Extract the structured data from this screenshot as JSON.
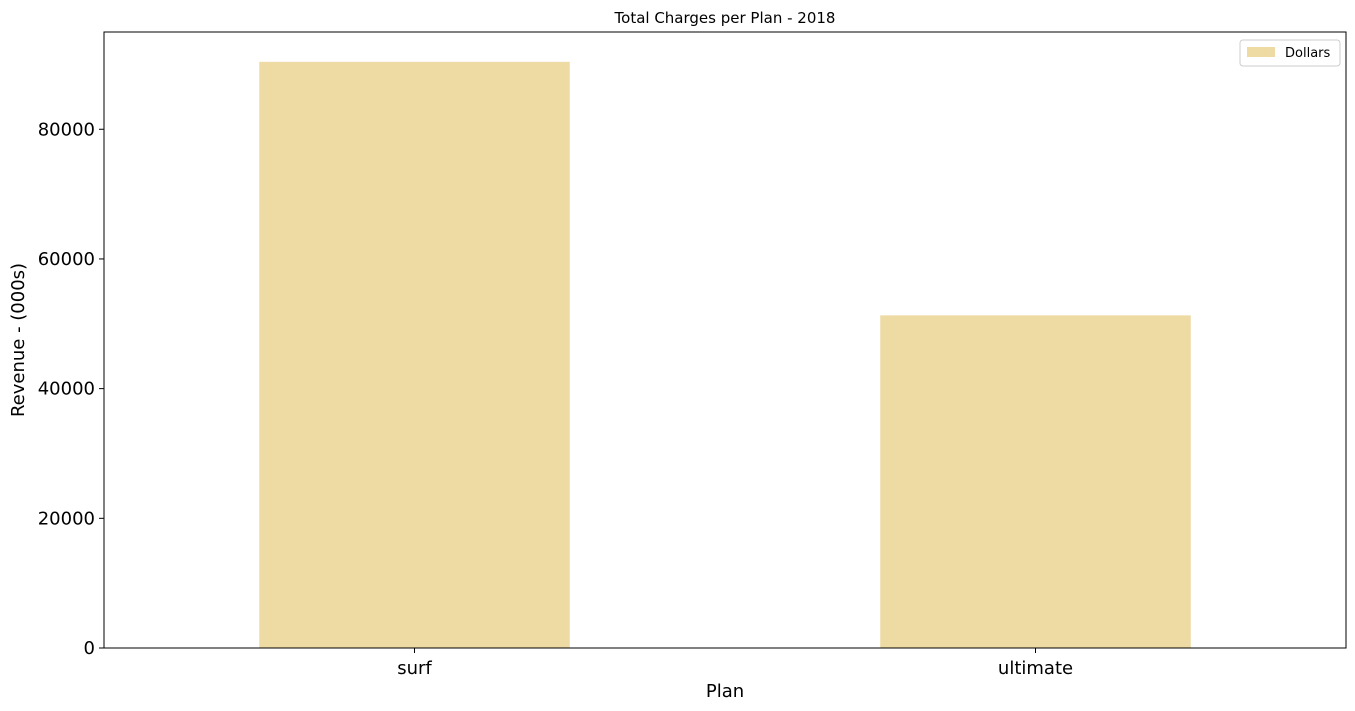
{
  "chart_data": {
    "type": "bar",
    "title": "Total Charges per Plan - 2018",
    "xlabel": "Plan",
    "ylabel": "Revenue - (000s)",
    "categories": [
      "surf",
      "ultimate"
    ],
    "series": [
      {
        "name": "Dollars",
        "values": [
          90400,
          51300
        ],
        "color": "#EEDAA3"
      }
    ],
    "ylim": [
      0,
      95000
    ],
    "yticks": [
      0,
      20000,
      40000,
      60000,
      80000
    ],
    "grid": false,
    "legend": "top-right"
  }
}
